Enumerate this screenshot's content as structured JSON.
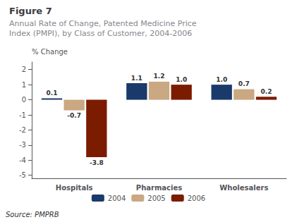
{
  "chart_data": {
    "type": "bar",
    "title": "Figure 7",
    "subtitle": "Annual Rate of Change, Patented Medicine Price\nIndex (PMPI), by Class of Customer, 2004-2006",
    "ylabel": "% Change",
    "annotations": [
      "Source: PMPRB"
    ],
    "categories": [
      "Hospitals",
      "Pharmacies",
      "Wholesalers"
    ],
    "series": [
      {
        "name": "2004",
        "color": "#1a3a6b",
        "values": [
          0.1,
          1.1,
          1.0
        ],
        "value_labels": [
          "0.1",
          "1.1",
          "1.0"
        ]
      },
      {
        "name": "2005",
        "color": "#c9a882",
        "values": [
          -0.7,
          1.2,
          0.7
        ],
        "value_labels": [
          "-0.7",
          "1.2",
          "0.7"
        ]
      },
      {
        "name": "2006",
        "color": "#7b1c00",
        "values": [
          -3.8,
          1.0,
          0.2
        ],
        "value_labels": [
          "-3.8",
          "1.0",
          "0.2"
        ]
      }
    ],
    "ylim": [
      -5.2,
      2.5
    ],
    "yticks": [
      -5,
      -4,
      -3,
      -2,
      -1,
      0,
      1,
      2
    ],
    "grid": false,
    "legend": "bottom",
    "data_labels": true
  }
}
